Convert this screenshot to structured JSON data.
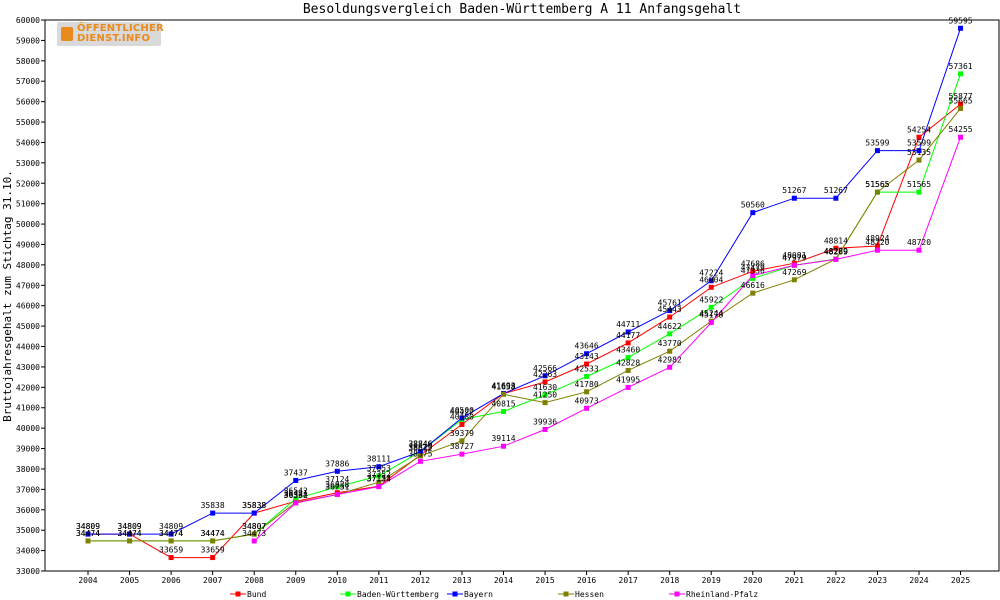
{
  "chart_data": {
    "type": "line",
    "title": "Besoldungsvergleich Baden-Württemberg A 11 Anfangsgehalt",
    "xlabel": "",
    "ylabel": "Bruttojahresgehalt zum Stichtag 31.10.",
    "ylim": [
      33000,
      60000
    ],
    "ytick_step": 1000,
    "grid": false,
    "legend_position": "bottom",
    "x": [
      "2004",
      "2005",
      "2006",
      "2007",
      "2008",
      "2009",
      "2010",
      "2011",
      "2012",
      "2013",
      "2014",
      "2015",
      "2016",
      "2017",
      "2018",
      "2019",
      "2020",
      "2021",
      "2022",
      "2023",
      "2024",
      "2025"
    ],
    "series": [
      {
        "name": "Bund",
        "color": "#ff0000",
        "values": [
          34809,
          34809,
          33659,
          33659,
          35838,
          36421,
          36838,
          37153,
          38679,
          40180,
          41693,
          42263,
          43143,
          44177,
          45443,
          46904,
          47686,
          48081,
          48814,
          48924,
          54254,
          55877
        ]
      },
      {
        "name": "Baden-Württemberg",
        "color": "#00ff00",
        "values": [
          34474,
          34474,
          34474,
          34474,
          34807,
          36542,
          37124,
          37653,
          38846,
          40422,
          40815,
          41630,
          42533,
          43460,
          44622,
          45922,
          47336,
          47979,
          48289,
          51565,
          51565,
          57361
        ]
      },
      {
        "name": "Bayern",
        "color": "#0000ff",
        "values": [
          34809,
          34809,
          34809,
          35838,
          35838,
          37437,
          37886,
          38111,
          38846,
          40500,
          41693,
          42566,
          43646,
          44711,
          45761,
          47224,
          50560,
          51267,
          51267,
          53599,
          53599,
          59595
        ]
      },
      {
        "name": "Hessen",
        "color": "#808000",
        "values": [
          34474,
          34474,
          34474,
          34474,
          34807,
          36364,
          36751,
          37352,
          38642,
          39379,
          41658,
          41250,
          41780,
          42828,
          43770,
          45244,
          46616,
          47269,
          48289,
          51565,
          53135,
          55665
        ]
      },
      {
        "name": "Rheinland-Pfalz",
        "color": "#ff00ff",
        "values": [
          null,
          null,
          null,
          null,
          34473,
          36332,
          36751,
          37134,
          38375,
          38727,
          39114,
          39936,
          40973,
          41995,
          42982,
          45178,
          47479,
          47979,
          48269,
          48720,
          48720,
          54255
        ]
      }
    ],
    "value_labels": [
      [
        "34809",
        "34809",
        "33659",
        "33659",
        "35838",
        "36421",
        "36838",
        "37153",
        "38679",
        "40180",
        "41693",
        "42263",
        "43143",
        "44177",
        "45443",
        "46904",
        "47686",
        "48081",
        "48814",
        "48924",
        "54254",
        "55877"
      ],
      [
        "34474",
        "34474",
        "34474",
        "34474",
        "34807",
        "36542",
        "37124",
        "37653",
        "38846",
        "40422",
        "40815",
        "41630",
        "42533",
        "43460",
        "44622",
        "45922",
        "47336",
        "47979",
        "48289",
        "51565",
        "51565",
        "57361"
      ],
      [
        "34809",
        "34809",
        "34809",
        "35838",
        "35838",
        "37437",
        "37886",
        "38111",
        "38846",
        "40500",
        "41693",
        "42566",
        "43646",
        "44711",
        "45761",
        "47224",
        "50560",
        "51267",
        "51267",
        "53599",
        "53599",
        "59595"
      ],
      [
        "34474",
        "34474",
        "34474",
        "34474",
        "34807",
        "36364",
        "36751",
        "37352",
        "38642",
        "39379",
        "41658",
        "41250",
        "41780",
        "42828",
        "43770",
        "45244",
        "46616",
        "47269",
        "48289",
        "51565",
        "53135",
        "55665"
      ],
      [
        "",
        "",
        "",
        "",
        "34473",
        "36332",
        "36751",
        "37134",
        "38375",
        "38727",
        "39114",
        "39936",
        "40973",
        "41995",
        "42982",
        "45178",
        "47479",
        "47979",
        "48269",
        "48720",
        "48720",
        "54255"
      ]
    ]
  },
  "logo": {
    "line1": "ÖFFENTLICHER",
    "line2": "DIENST.INFO"
  }
}
